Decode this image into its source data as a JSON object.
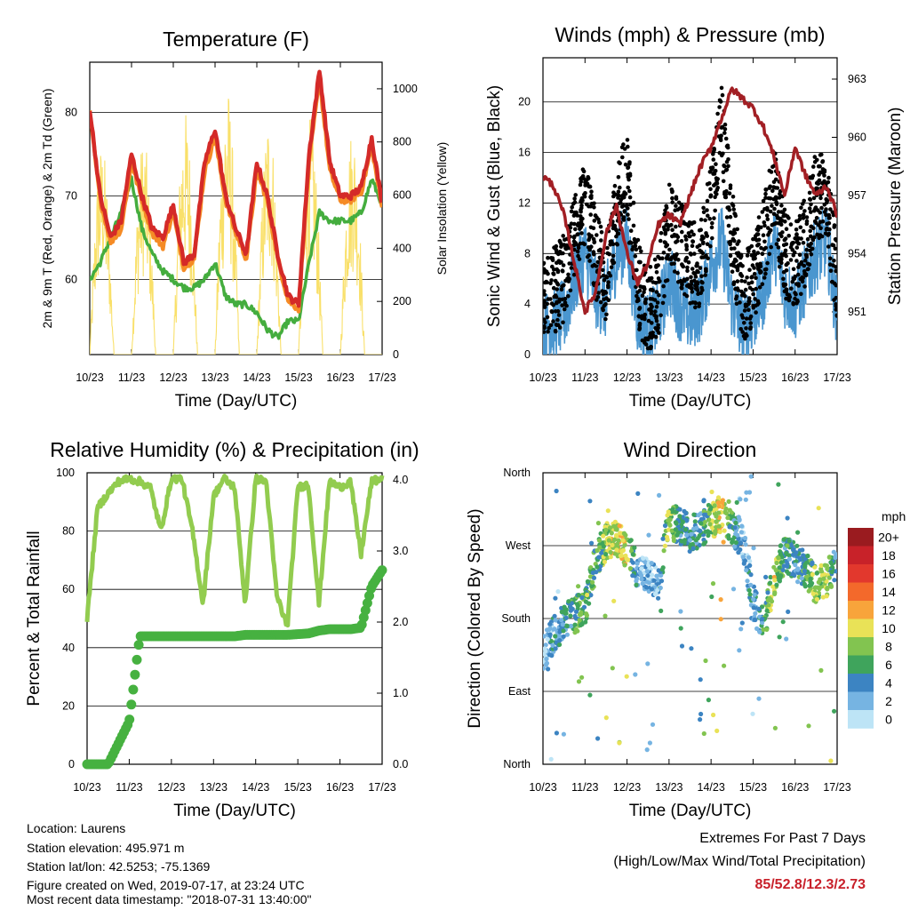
{
  "x_axis": {
    "ticks": [
      "10/23",
      "11/23",
      "12/23",
      "13/23",
      "14/23",
      "15/23",
      "16/23",
      "17/23"
    ],
    "title": "Time (Day/UTC)"
  },
  "colors": {
    "t2m": "#d42a28",
    "t9m": "#f58b25",
    "td": "#44ad3e",
    "solar": "#f9e06a",
    "wind": "#4a96cf",
    "gust": "#000000",
    "pressure": "#a21f24",
    "rh": "#92cc4f",
    "rain": "#46b140"
  },
  "chart_data": [
    {
      "id": "temperature",
      "type": "line",
      "title": "Temperature (F)",
      "xlabel": "Time (Day/UTC)",
      "ylabel": "2m & 9m T (Red, Orange) & 2m Td (Green)",
      "y2label": "Solar Insolation (Yellow)",
      "ylim": [
        51,
        86
      ],
      "yticks": [
        60,
        70,
        80
      ],
      "y2lim": [
        0,
        1100
      ],
      "y2ticks": [
        0,
        200,
        400,
        600,
        800,
        1000
      ],
      "x": [
        0,
        0.25,
        0.5,
        0.75,
        1,
        1.25,
        1.5,
        1.75,
        2,
        2.25,
        2.5,
        2.75,
        3,
        3.25,
        3.5,
        3.75,
        4,
        4.25,
        4.5,
        4.75,
        5,
        5.25,
        5.5,
        5.75,
        6,
        6.25,
        6.5,
        6.75,
        7
      ],
      "series": [
        {
          "key": "t2m",
          "values": [
            80.5,
            70,
            65,
            67,
            75,
            70,
            66,
            65,
            69,
            62,
            63,
            74,
            78,
            70,
            66,
            63,
            74,
            70,
            63,
            58,
            57,
            75,
            85,
            74,
            70,
            70,
            71,
            77,
            69
          ]
        },
        {
          "key": "t9m",
          "values": [
            80,
            69.5,
            64.5,
            66,
            74,
            69.5,
            65.5,
            64,
            68,
            61.5,
            62.5,
            73,
            77,
            69.5,
            65.5,
            62.5,
            73,
            69.5,
            62.5,
            57.5,
            56.5,
            74,
            84,
            73,
            69.5,
            69.5,
            70.5,
            76,
            68.5
          ]
        },
        {
          "key": "td",
          "values": [
            60,
            62,
            65,
            68,
            72,
            66,
            63,
            61,
            60,
            59,
            59,
            60,
            62,
            58,
            57,
            57,
            56,
            54,
            53,
            55,
            55,
            62,
            68,
            67,
            67,
            67,
            68,
            72,
            69
          ]
        },
        {
          "key": "solar",
          "values": [
            0,
            0,
            0,
            0,
            820,
            400,
            0,
            0,
            920,
            0,
            0,
            0,
            1020,
            0,
            0,
            0,
            920,
            0,
            0,
            0,
            900,
            0,
            0,
            0,
            870,
            0,
            0,
            700,
            0
          ]
        }
      ]
    },
    {
      "id": "winds",
      "type": "scatter",
      "title": "Winds (mph) & Pressure (mb)",
      "xlabel": "Time (Day/UTC)",
      "ylabel": "Sonic Wind & Gust (Blue, Black)",
      "y2label": "Station Pressure (Maroon)",
      "ylim": [
        0,
        23.5
      ],
      "yticks": [
        0,
        4,
        8,
        12,
        16,
        20
      ],
      "y2lim": [
        948.8,
        964.1
      ],
      "y2ticks": [
        951,
        954,
        957,
        960,
        963
      ],
      "x": [
        0,
        0.25,
        0.5,
        0.75,
        1,
        1.25,
        1.5,
        1.75,
        2,
        2.25,
        2.5,
        2.75,
        3,
        3.25,
        3.5,
        3.75,
        4,
        4.25,
        4.5,
        4.75,
        5,
        5.25,
        5.5,
        5.75,
        6,
        6.25,
        6.5,
        6.75,
        7
      ],
      "series": [
        {
          "key": "wind",
          "values": [
            2,
            2.5,
            3,
            6,
            8,
            5,
            4,
            8,
            9,
            3,
            2,
            3,
            6,
            4,
            3,
            4,
            7,
            9,
            4,
            2,
            3,
            5,
            9,
            5,
            4,
            6,
            8,
            9,
            3
          ]
        },
        {
          "key": "gust",
          "values": [
            4,
            5,
            6,
            9,
            12,
            8,
            6,
            12,
            14,
            6,
            3,
            5,
            10,
            9,
            7,
            7,
            12,
            18,
            10,
            4,
            6,
            9,
            13,
            8,
            7,
            9,
            13,
            12,
            6
          ]
        },
        {
          "key": "pressure",
          "values": [
            958,
            957.5,
            956,
            953.5,
            951,
            952,
            955,
            956.5,
            954,
            952.5,
            953.5,
            955.5,
            956,
            955.5,
            957,
            958.5,
            959.5,
            961,
            962.5,
            962,
            961.5,
            960.5,
            959,
            957,
            959.5,
            958,
            957,
            957.5,
            956
          ]
        }
      ]
    },
    {
      "id": "humidity",
      "type": "line",
      "title": "Relative Humidity (%) & Precipitation (in)",
      "xlabel": "Time (Day/UTC)",
      "ylabel": "Percent & Total Rainfall",
      "ylim": [
        0,
        100
      ],
      "yticks": [
        0,
        20,
        40,
        60,
        80,
        100
      ],
      "y2lim": [
        0,
        4.1
      ],
      "y2ticks": [
        "0.0",
        "1.0",
        "2.0",
        "3.0",
        "4.0"
      ],
      "x": [
        0,
        0.25,
        0.5,
        0.75,
        1,
        1.25,
        1.5,
        1.75,
        2,
        2.25,
        2.5,
        2.75,
        3,
        3.25,
        3.5,
        3.75,
        4,
        4.25,
        4.5,
        4.75,
        5,
        5.25,
        5.5,
        5.75,
        6,
        6.25,
        6.5,
        6.75,
        7
      ],
      "series": [
        {
          "key": "rh",
          "values": [
            50,
            88,
            93,
            97,
            98,
            97,
            95,
            80,
            98,
            98,
            80,
            55,
            92,
            98,
            95,
            55,
            98,
            97,
            58,
            47,
            95,
            96,
            55,
            97,
            95,
            97,
            72,
            97,
            98
          ]
        },
        {
          "key": "rain",
          "values": [
            0,
            0,
            0,
            0.3,
            0.6,
            1.8,
            1.8,
            1.8,
            1.8,
            1.8,
            1.8,
            1.8,
            1.8,
            1.8,
            1.8,
            1.82,
            1.82,
            1.82,
            1.82,
            1.82,
            1.83,
            1.84,
            1.88,
            1.9,
            1.9,
            1.9,
            1.92,
            2.5,
            2.73
          ]
        }
      ]
    },
    {
      "id": "direction",
      "type": "scatter",
      "title": "Wind Direction",
      "xlabel": "Time (Day/UTC)",
      "ylabel": "Direction (Colored By Speed)",
      "yticks": [
        "North",
        "East",
        "South",
        "West",
        "North"
      ],
      "x": [
        0,
        0.25,
        0.5,
        0.75,
        1,
        1.25,
        1.5,
        1.75,
        2,
        2.25,
        2.5,
        2.75,
        3,
        3.25,
        3.5,
        3.75,
        4,
        4.25,
        4.5,
        4.75,
        5,
        5.25,
        5.5,
        5.75,
        6,
        6.25,
        6.5,
        6.75,
        7
      ],
      "series": [
        {
          "name": "direction_deg",
          "values": [
            135,
            160,
            175,
            185,
            190,
            250,
            275,
            280,
            265,
            240,
            230,
            225,
            300,
            295,
            285,
            290,
            300,
            310,
            290,
            280,
            200,
            170,
            230,
            260,
            250,
            240,
            220,
            230,
            245
          ]
        },
        {
          "name": "speed_mph",
          "values": [
            2,
            3,
            4,
            6,
            7,
            6,
            8,
            10,
            9,
            3,
            2,
            3,
            9,
            5,
            4,
            4,
            8,
            11,
            5,
            2,
            3,
            5,
            10,
            5,
            4,
            6,
            8,
            9,
            3
          ]
        }
      ],
      "colorbar": {
        "title": "mph",
        "labels": [
          "20+",
          "18",
          "16",
          "14",
          "12",
          "10",
          "8",
          "6",
          "4",
          "2",
          "0"
        ],
        "colors": [
          "#9a1b1f",
          "#c82229",
          "#e2382d",
          "#f3692b",
          "#f8a43b",
          "#e9e257",
          "#82c450",
          "#3fa45c",
          "#3c84c2",
          "#76b4e2",
          "#bde4f6"
        ]
      }
    }
  ],
  "info": {
    "location": "Location: Laurens",
    "elevation": "Station elevation: 495.971 m",
    "latlon": "Station lat/lon: 42.5253; -75.1369",
    "created": "Figure created on Wed, 2019-07-17, at 23:24 UTC",
    "latest": "Most recent data timestamp: \"2018-07-31 13:40:00\""
  },
  "extremes": {
    "line1": "Extremes For Past 7 Days",
    "line2": "(High/Low/Max Wind/Total Precipitation)",
    "values": "85/52.8/12.3/2.73"
  }
}
